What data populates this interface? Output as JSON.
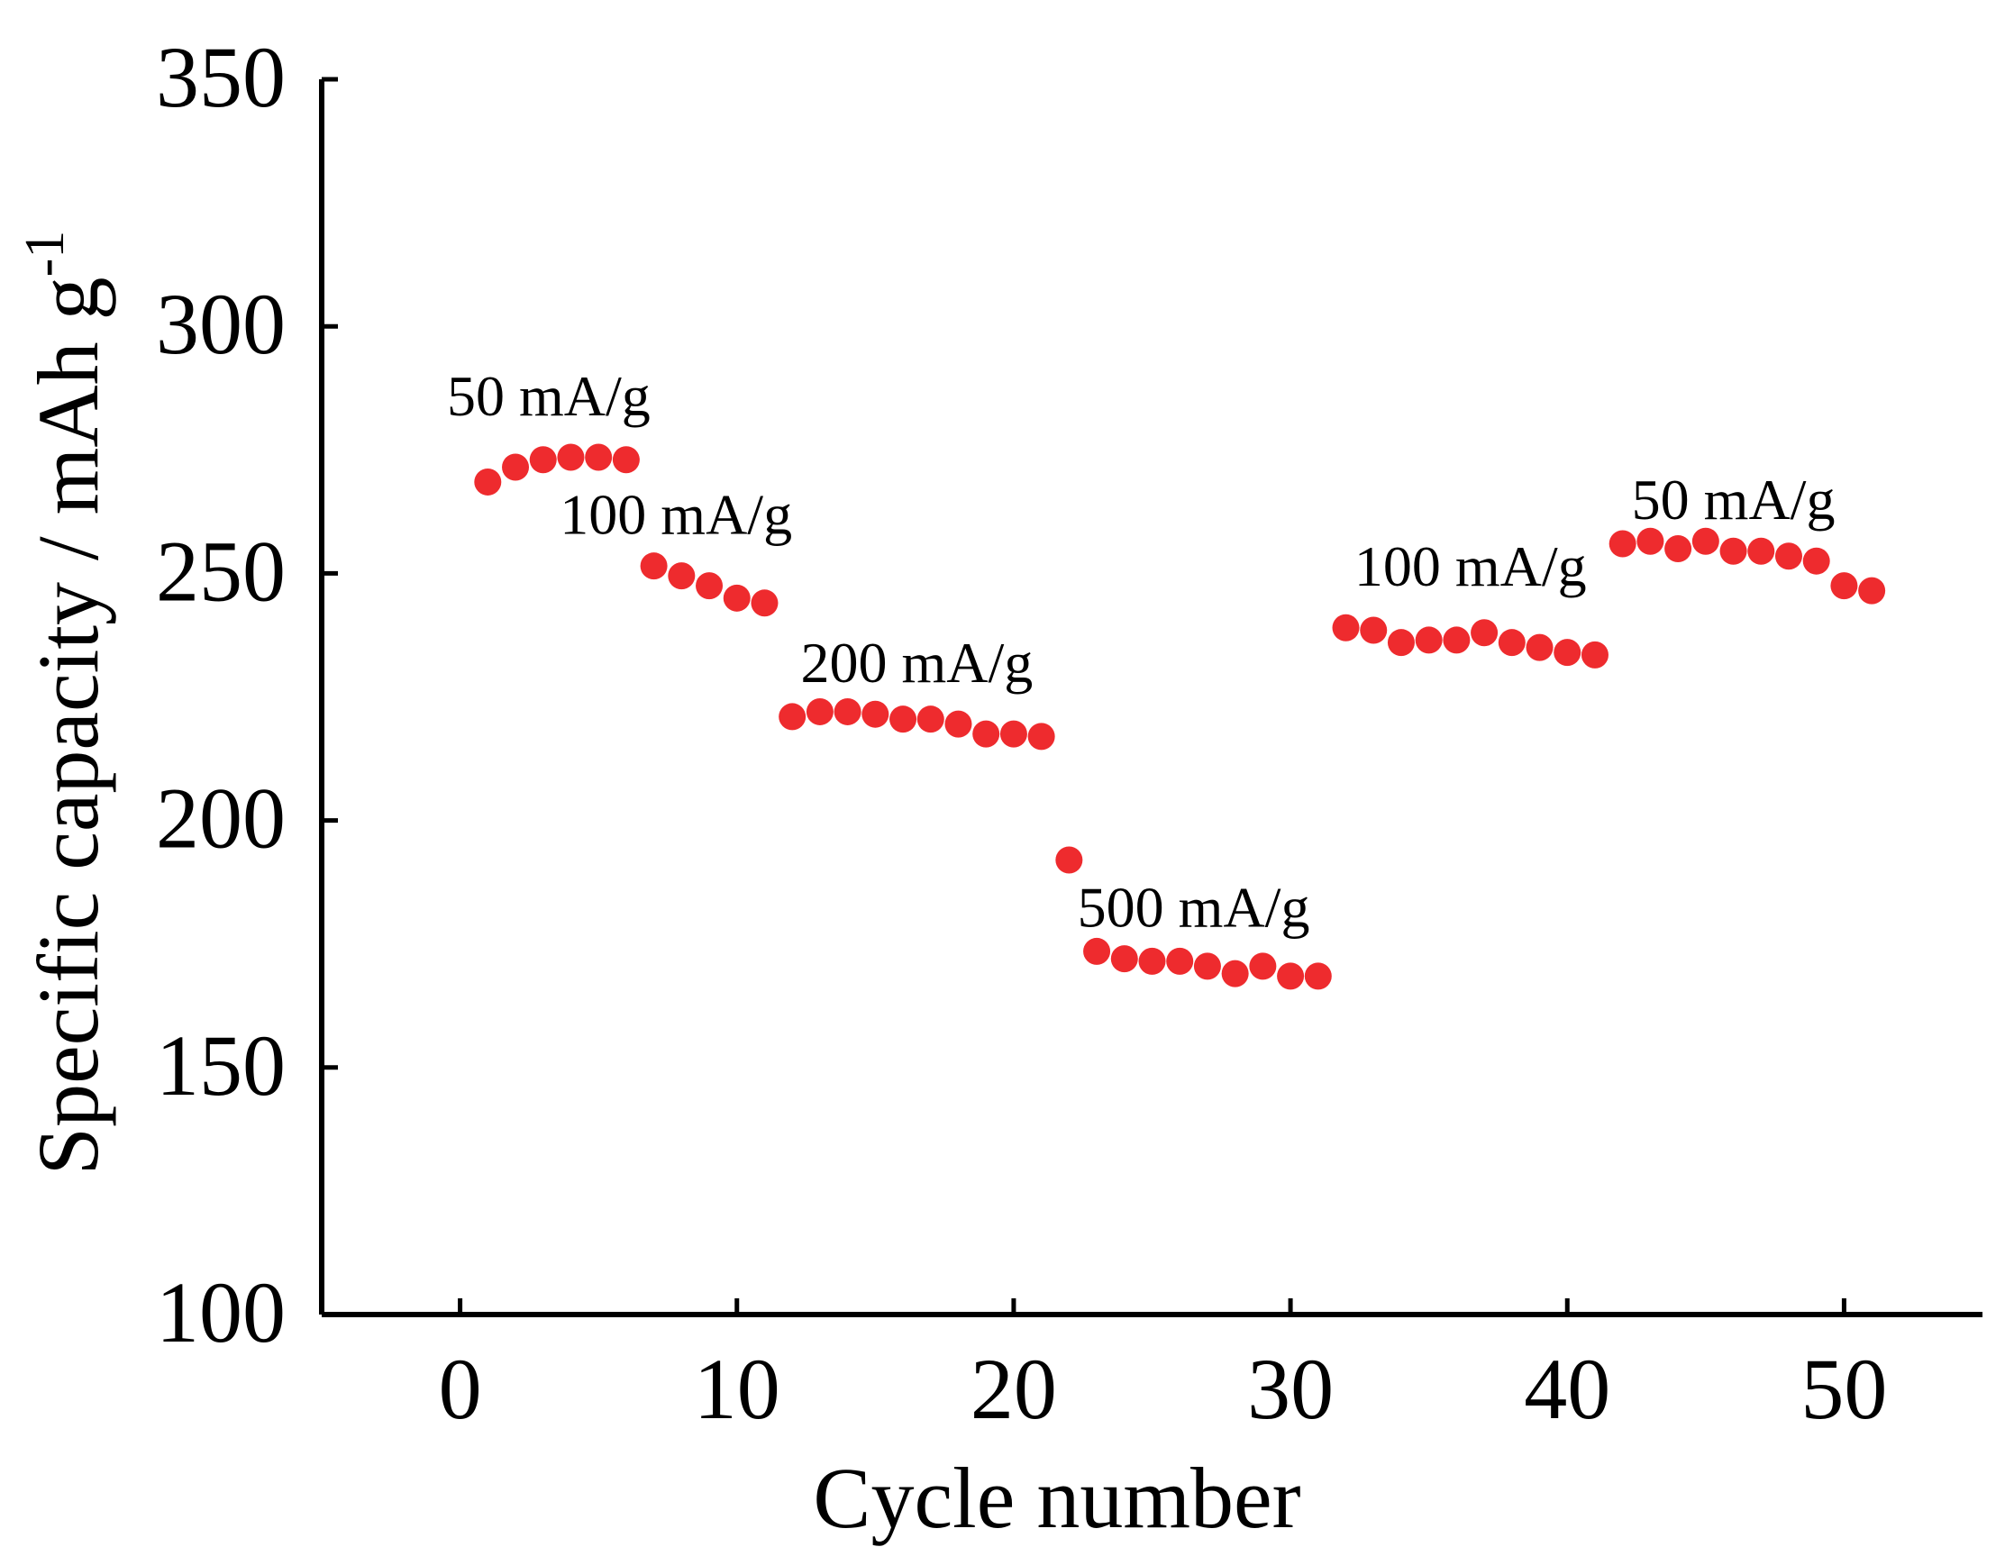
{
  "chart_data": {
    "type": "scatter",
    "title": "",
    "xlabel": "Cycle number",
    "ylabel_main": "Specific capacity / mAh g",
    "ylabel_sup": "-1",
    "xlim": [
      -5,
      55
    ],
    "ylim": [
      100,
      350
    ],
    "xticks": [
      "0",
      "10",
      "20",
      "30",
      "40",
      "50"
    ],
    "yticks": [
      "100",
      "150",
      "200",
      "250",
      "300",
      "350"
    ],
    "marker_color": "#ee2b2e",
    "grid": false,
    "series": [
      {
        "name": "capacity",
        "x": [
          1,
          2,
          3,
          4,
          5,
          6,
          7,
          8,
          9,
          10,
          11,
          12,
          13,
          14,
          15,
          16,
          17,
          18,
          19,
          20,
          21,
          22,
          23,
          24,
          25,
          26,
          27,
          28,
          29,
          30,
          31,
          32,
          33,
          34,
          35,
          36,
          37,
          38,
          39,
          40,
          41,
          42,
          43,
          44,
          45,
          46,
          47,
          48,
          49,
          50,
          51
        ],
        "y": [
          268.5,
          271.5,
          273,
          273.5,
          273.5,
          273,
          251.5,
          249.5,
          247.5,
          245,
          244,
          221,
          222,
          222,
          221.5,
          220.5,
          220.5,
          219.5,
          217.5,
          217.5,
          217,
          192,
          173.5,
          172,
          171.5,
          171.5,
          170.5,
          169,
          170.5,
          168.5,
          168.5,
          239,
          238.5,
          236,
          236.5,
          236.5,
          238,
          236,
          235,
          234,
          233.5,
          256,
          256.5,
          255,
          256.5,
          254.5,
          254.5,
          253.5,
          252.5,
          247.5,
          246.5
        ]
      }
    ],
    "annotations": [
      {
        "text": "50 mA/g",
        "x": 3.2,
        "y": 282
      },
      {
        "text": "100 mA/g",
        "x": 7.8,
        "y": 258
      },
      {
        "text": "200 mA/g",
        "x": 16.5,
        "y": 228
      },
      {
        "text": "500 mA/g",
        "x": 26.5,
        "y": 178.5
      },
      {
        "text": "100 mA/g",
        "x": 36.5,
        "y": 247.5
      },
      {
        "text": "50 mA/g",
        "x": 46.0,
        "y": 261
      }
    ]
  }
}
